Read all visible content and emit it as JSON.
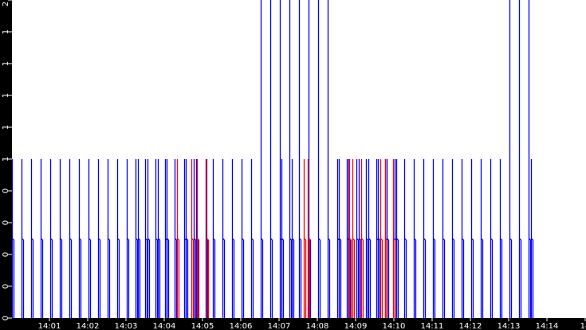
{
  "chart_data": {
    "type": "line",
    "title": "",
    "xlabel": "",
    "ylabel": "",
    "ylim": [
      0,
      2
    ],
    "xlim": [
      "14:00:00",
      "14:15:00"
    ],
    "grid": false,
    "y_ticks": [
      {
        "value": 0,
        "label": "0"
      },
      {
        "value": 0.2,
        "label": "0"
      },
      {
        "value": 0.4,
        "label": "0"
      },
      {
        "value": 0.6,
        "label": "0"
      },
      {
        "value": 0.8,
        "label": "0"
      },
      {
        "value": 1.0,
        "label": "1"
      },
      {
        "value": 1.2,
        "label": "1"
      },
      {
        "value": 1.4,
        "label": "1"
      },
      {
        "value": 1.6,
        "label": "1"
      },
      {
        "value": 1.8,
        "label": "1"
      },
      {
        "value": 2.0,
        "label": "2"
      }
    ],
    "x_ticks": [
      {
        "value": "14:01:00",
        "label": "14:01"
      },
      {
        "value": "14:02:00",
        "label": "14:02"
      },
      {
        "value": "14:03:00",
        "label": "14:03"
      },
      {
        "value": "14:04:00",
        "label": "14:04"
      },
      {
        "value": "14:05:00",
        "label": "14:05"
      },
      {
        "value": "14:06:00",
        "label": "14:06"
      },
      {
        "value": "14:07:00",
        "label": "14:07"
      },
      {
        "value": "14:08:00",
        "label": "14:08"
      },
      {
        "value": "14:09:00",
        "label": "14:09"
      },
      {
        "value": "14:10:00",
        "label": "14:10"
      },
      {
        "value": "14:11:00",
        "label": "14:11"
      },
      {
        "value": "14:12:00",
        "label": "14:12"
      },
      {
        "value": "14:13:00",
        "label": "14:13"
      },
      {
        "value": "14:14:00",
        "label": "14:14"
      },
      {
        "value": "14:15:00",
        "label": "14"
      }
    ],
    "colors": {
      "background": "#ffffff",
      "axis_background": "#000000",
      "axis_text": "#ffffff"
    },
    "series": [
      {
        "color": "#0000ff",
        "pulse_shoulder": 0.5,
        "pulses": [
          {
            "t": "14:00:01",
            "peak": 1
          },
          {
            "t": "14:00:16",
            "peak": 1
          },
          {
            "t": "14:00:31",
            "peak": 1
          },
          {
            "t": "14:00:46",
            "peak": 1
          },
          {
            "t": "14:01:01",
            "peak": 1
          },
          {
            "t": "14:01:16",
            "peak": 1
          },
          {
            "t": "14:01:31",
            "peak": 1
          },
          {
            "t": "14:01:46",
            "peak": 1
          },
          {
            "t": "14:02:01",
            "peak": 1
          },
          {
            "t": "14:02:16",
            "peak": 1
          },
          {
            "t": "14:02:31",
            "peak": 1
          },
          {
            "t": "14:02:46",
            "peak": 1
          },
          {
            "t": "14:03:01",
            "peak": 1
          },
          {
            "t": "14:03:15",
            "peak": 1
          },
          {
            "t": "14:03:19",
            "peak": 1
          },
          {
            "t": "14:03:30",
            "peak": 1
          },
          {
            "t": "14:03:34",
            "peak": 1
          },
          {
            "t": "14:03:46",
            "peak": 1
          },
          {
            "t": "14:03:50",
            "peak": 1
          },
          {
            "t": "14:04:01",
            "peak": 1
          },
          {
            "t": "14:04:04",
            "peak": 1
          },
          {
            "t": "14:04:16",
            "peak": 1
          },
          {
            "t": "14:04:31",
            "peak": 1
          },
          {
            "t": "14:04:34",
            "peak": 1
          },
          {
            "t": "14:04:46",
            "peak": 1
          },
          {
            "t": "14:04:50",
            "peak": 1
          },
          {
            "t": "14:05:05",
            "peak": 1
          },
          {
            "t": "14:05:16",
            "peak": 1
          },
          {
            "t": "14:05:31",
            "peak": 1
          },
          {
            "t": "14:05:46",
            "peak": 1
          },
          {
            "t": "14:06:01",
            "peak": 1
          },
          {
            "t": "14:06:16",
            "peak": 1
          },
          {
            "t": "14:06:31",
            "peak": 2
          },
          {
            "t": "14:06:46",
            "peak": 2
          },
          {
            "t": "14:07:01",
            "peak": 2
          },
          {
            "t": "14:07:04",
            "peak": 1
          },
          {
            "t": "14:07:16",
            "peak": 2
          },
          {
            "t": "14:07:20",
            "peak": 1
          },
          {
            "t": "14:07:31",
            "peak": 2
          },
          {
            "t": "14:07:46",
            "peak": 2
          },
          {
            "t": "14:08:01",
            "peak": 2
          },
          {
            "t": "14:08:16",
            "peak": 2
          },
          {
            "t": "14:08:31",
            "peak": 1
          },
          {
            "t": "14:08:34",
            "peak": 1
          },
          {
            "t": "14:08:46",
            "peak": 1
          },
          {
            "t": "14:08:49",
            "peak": 1
          },
          {
            "t": "14:09:01",
            "peak": 1
          },
          {
            "t": "14:09:05",
            "peak": 1
          },
          {
            "t": "14:09:16",
            "peak": 1
          },
          {
            "t": "14:09:20",
            "peak": 1
          },
          {
            "t": "14:09:32",
            "peak": 1
          },
          {
            "t": "14:09:35",
            "peak": 1
          },
          {
            "t": "14:09:46",
            "peak": 1
          },
          {
            "t": "14:09:49",
            "peak": 1
          },
          {
            "t": "14:10:01",
            "peak": 1
          },
          {
            "t": "14:10:04",
            "peak": 1
          },
          {
            "t": "14:10:16",
            "peak": 1
          },
          {
            "t": "14:10:31",
            "peak": 1
          },
          {
            "t": "14:10:46",
            "peak": 1
          },
          {
            "t": "14:11:01",
            "peak": 1
          },
          {
            "t": "14:11:16",
            "peak": 1
          },
          {
            "t": "14:11:31",
            "peak": 1
          },
          {
            "t": "14:11:46",
            "peak": 1
          },
          {
            "t": "14:12:01",
            "peak": 1
          },
          {
            "t": "14:12:16",
            "peak": 1
          },
          {
            "t": "14:12:31",
            "peak": 1
          },
          {
            "t": "14:12:46",
            "peak": 1
          },
          {
            "t": "14:13:01",
            "peak": 2
          },
          {
            "t": "14:13:16",
            "peak": 2
          },
          {
            "t": "14:13:31",
            "peak": 2
          },
          {
            "t": "14:13:35",
            "peak": 1
          }
        ]
      },
      {
        "color": "#ff0000",
        "pulse_shoulder": 0.5,
        "pulses": [
          {
            "t": "14:04:20",
            "peak": 1
          },
          {
            "t": "14:04:42",
            "peak": 1
          },
          {
            "t": "14:04:51",
            "peak": 1
          },
          {
            "t": "14:05:06",
            "peak": 1
          },
          {
            "t": "14:07:39",
            "peak": 1
          },
          {
            "t": "14:07:45",
            "peak": 1
          },
          {
            "t": "14:08:50",
            "peak": 1
          },
          {
            "t": "14:08:55",
            "peak": 1
          },
          {
            "t": "14:09:09",
            "peak": 1
          },
          {
            "t": "14:09:39",
            "peak": 1
          },
          {
            "t": "14:09:46",
            "peak": 1
          },
          {
            "t": "14:09:59",
            "peak": 1
          }
        ]
      }
    ]
  }
}
